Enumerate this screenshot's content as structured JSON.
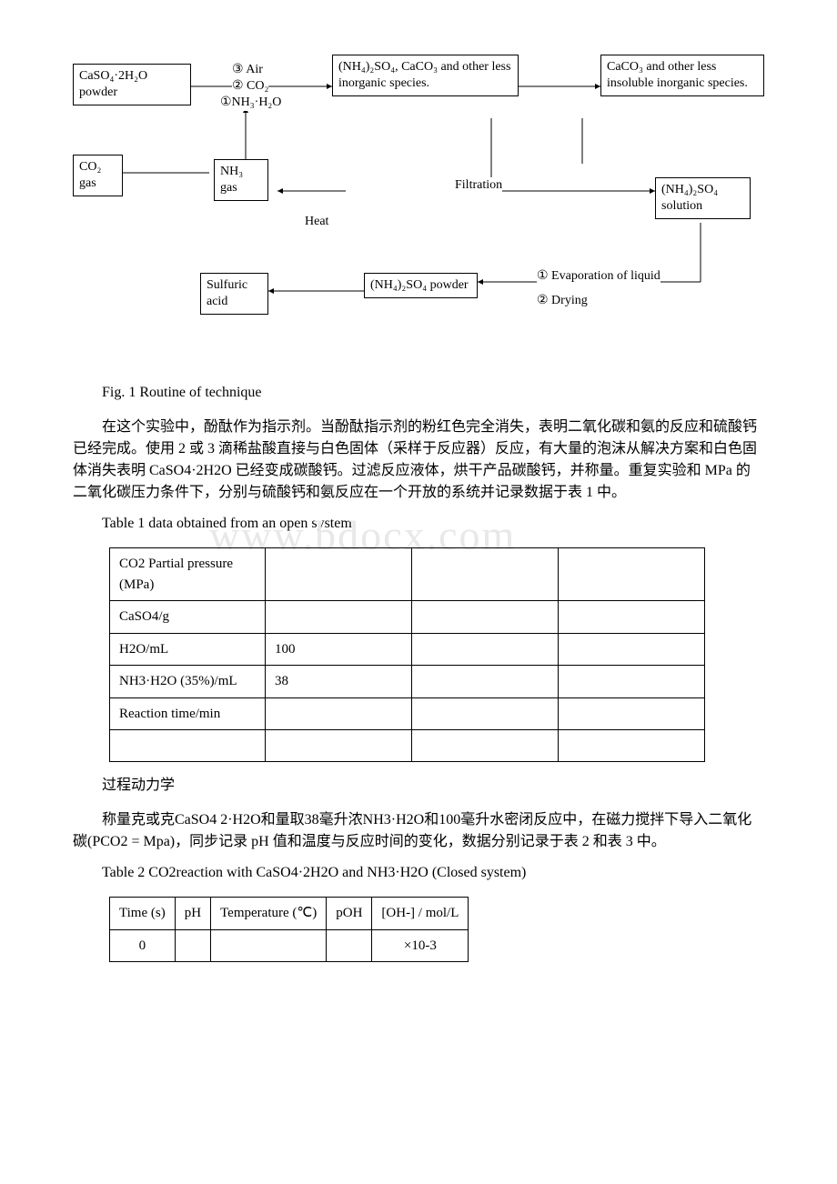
{
  "diagram": {
    "boxes": {
      "caso4_powder": "CaSO₄·2H₂O\npowder",
      "co2_gas": "CO₂\ngas",
      "nh3_gas": "NH₃\ngas",
      "intermediate": "(NH₄)₂SO₄, CaCO₃ and other less inorganic species.",
      "product_solid": "CaCO₃ and other less insoluble inorganic species.",
      "nh4so4_solution": "(NH₄)₂SO₄\nsolution",
      "nh4so4_powder": "(NH₄)₂SO₄\npowder",
      "sulfuric": "Sulfuric\nacid"
    },
    "labels": {
      "air": "③ Air",
      "co2": "② CO₂",
      "nh3h2o": "①NH₃·H₂O",
      "heat": "Heat",
      "filtration": "Filtration",
      "evap": "① Evaporation of liquid",
      "drying": "② Drying"
    }
  },
  "fig_caption": "Fig. 1 Routine of technique",
  "para1": "在这个实验中，酚酞作为指示剂。当酚酞指示剂的粉红色完全消失，表明二氧化碳和氨的反应和硫酸钙已经完成。使用 2 或 3 滴稀盐酸直接与白色固体（采样于反应器）反应，有大量的泡沫从解决方案和白色固体消失表明 CaSO4·2H2O 已经变成碳酸钙。过滤反应液体，烘干产品碳酸钙，并称量。重复实验和 MPa 的二氧化碳压力条件下，分别与硫酸钙和氨反应在一个开放的系统并记录数据于表 1 中。",
  "table1_caption": "Table 1 data obtained from an open system",
  "table1": {
    "rows": [
      [
        "CO2 Partial pressure (MPa)",
        "",
        "",
        ""
      ],
      [
        "CaSO4/g",
        "",
        "",
        ""
      ],
      [
        "H2O/mL",
        "100",
        "",
        ""
      ],
      [
        "NH3·H2O (35%)/mL",
        "38",
        "",
        ""
      ],
      [
        "Reaction time/min",
        "",
        "",
        ""
      ],
      [
        "",
        "",
        "",
        ""
      ]
    ]
  },
  "watermark": "www.bdocx.com",
  "heading_kinetics": "过程动力学",
  "para2": "称量克或克CaSO4 2·H2O和量取38毫升浓NH3·H2O和100毫升水密闭反应中，在磁力搅拌下导入二氧化碳(PCO2 = Mpa)，同步记录 pH 值和温度与反应时间的变化，数据分别记录于表 2 和表 3 中。",
  "table2_caption": "Table 2 CO2reaction with CaSO4·2H2O and NH3·H2O (Closed system)",
  "table2": {
    "headers": [
      "Time (s)",
      "pH",
      "Temperature (℃)",
      "pOH",
      "[OH-] / mol/L"
    ],
    "rows": [
      [
        "0",
        "",
        "",
        "",
        "×10-3"
      ]
    ]
  }
}
